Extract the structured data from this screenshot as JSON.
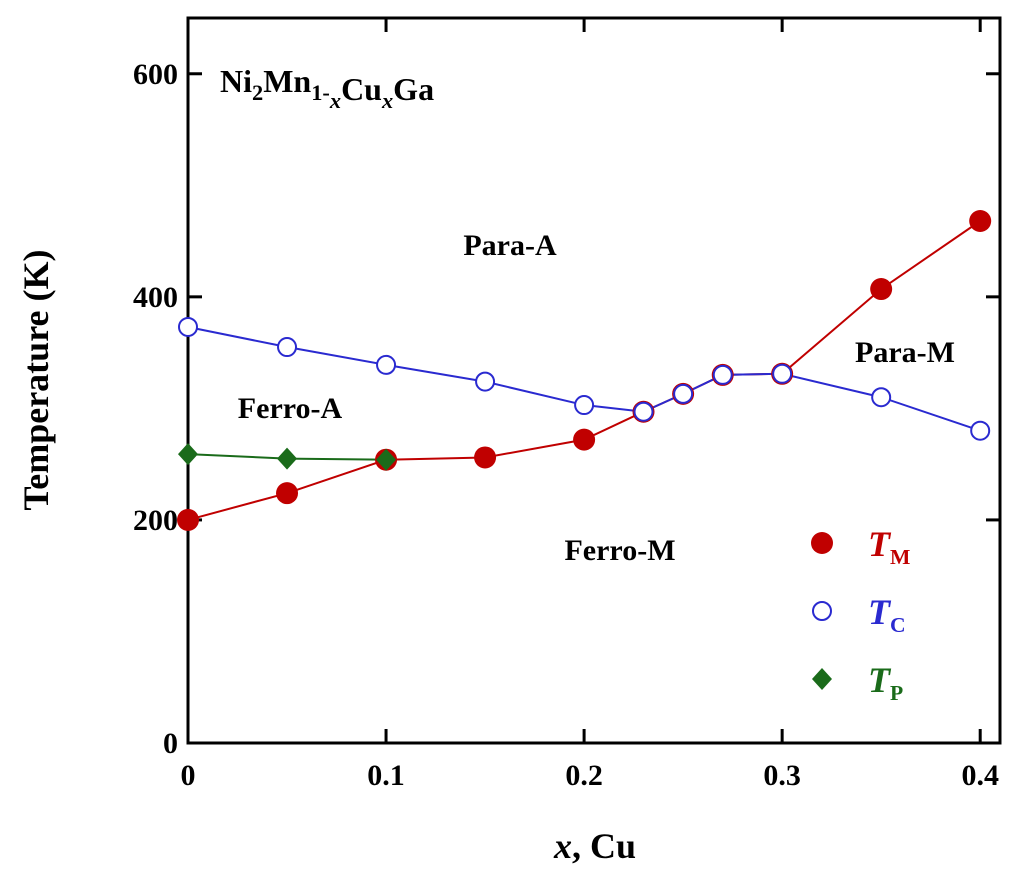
{
  "chart_data": {
    "type": "line",
    "title_parts": [
      {
        "text": "Ni"
      },
      {
        "text": "2",
        "sub": true
      },
      {
        "text": "Mn"
      },
      {
        "text": "1-",
        "sub": true
      },
      {
        "text": "x",
        "sub": true,
        "italic": true
      },
      {
        "text": "Cu"
      },
      {
        "text": "x",
        "sub": true,
        "italic": true
      },
      {
        "text": "Ga"
      }
    ],
    "x_label_parts": [
      {
        "text": "x",
        "italic": true
      },
      {
        "text": ", Cu"
      }
    ],
    "y_label": "Temperature (K)",
    "annotations": [
      "Para-A",
      "Ferro-A",
      "Ferro-M",
      "Para-M"
    ],
    "xlim": [
      0,
      0.41
    ],
    "ylim": [
      0,
      650
    ],
    "xticks": [
      0,
      0.1,
      0.2,
      0.3,
      0.4
    ],
    "yticks": [
      0,
      200,
      400,
      600
    ],
    "legend": "lower right",
    "series": [
      {
        "name": "T",
        "subscript": "M",
        "color": "#c00000",
        "marker": "filled-circle",
        "x": [
          0,
          0.05,
          0.1,
          0.15,
          0.2,
          0.23,
          0.25,
          0.27,
          0.3,
          0.35,
          0.4
        ],
        "values": [
          200,
          224,
          254,
          256,
          272,
          297,
          313,
          330,
          331,
          407,
          468
        ]
      },
      {
        "name": "T",
        "subscript": "C",
        "color": "#2a2ad0",
        "marker": "open-circle",
        "x": [
          0,
          0.05,
          0.1,
          0.15,
          0.2,
          0.23,
          0.25,
          0.27,
          0.3,
          0.35,
          0.4
        ],
        "values": [
          373,
          355,
          339,
          324,
          303,
          297,
          313,
          330,
          331,
          310,
          280
        ]
      },
      {
        "name": "T",
        "subscript": "P",
        "color": "#1a6b1a",
        "marker": "diamond",
        "x": [
          0,
          0.05,
          0.1
        ],
        "values": [
          259,
          255,
          254
        ]
      }
    ]
  }
}
